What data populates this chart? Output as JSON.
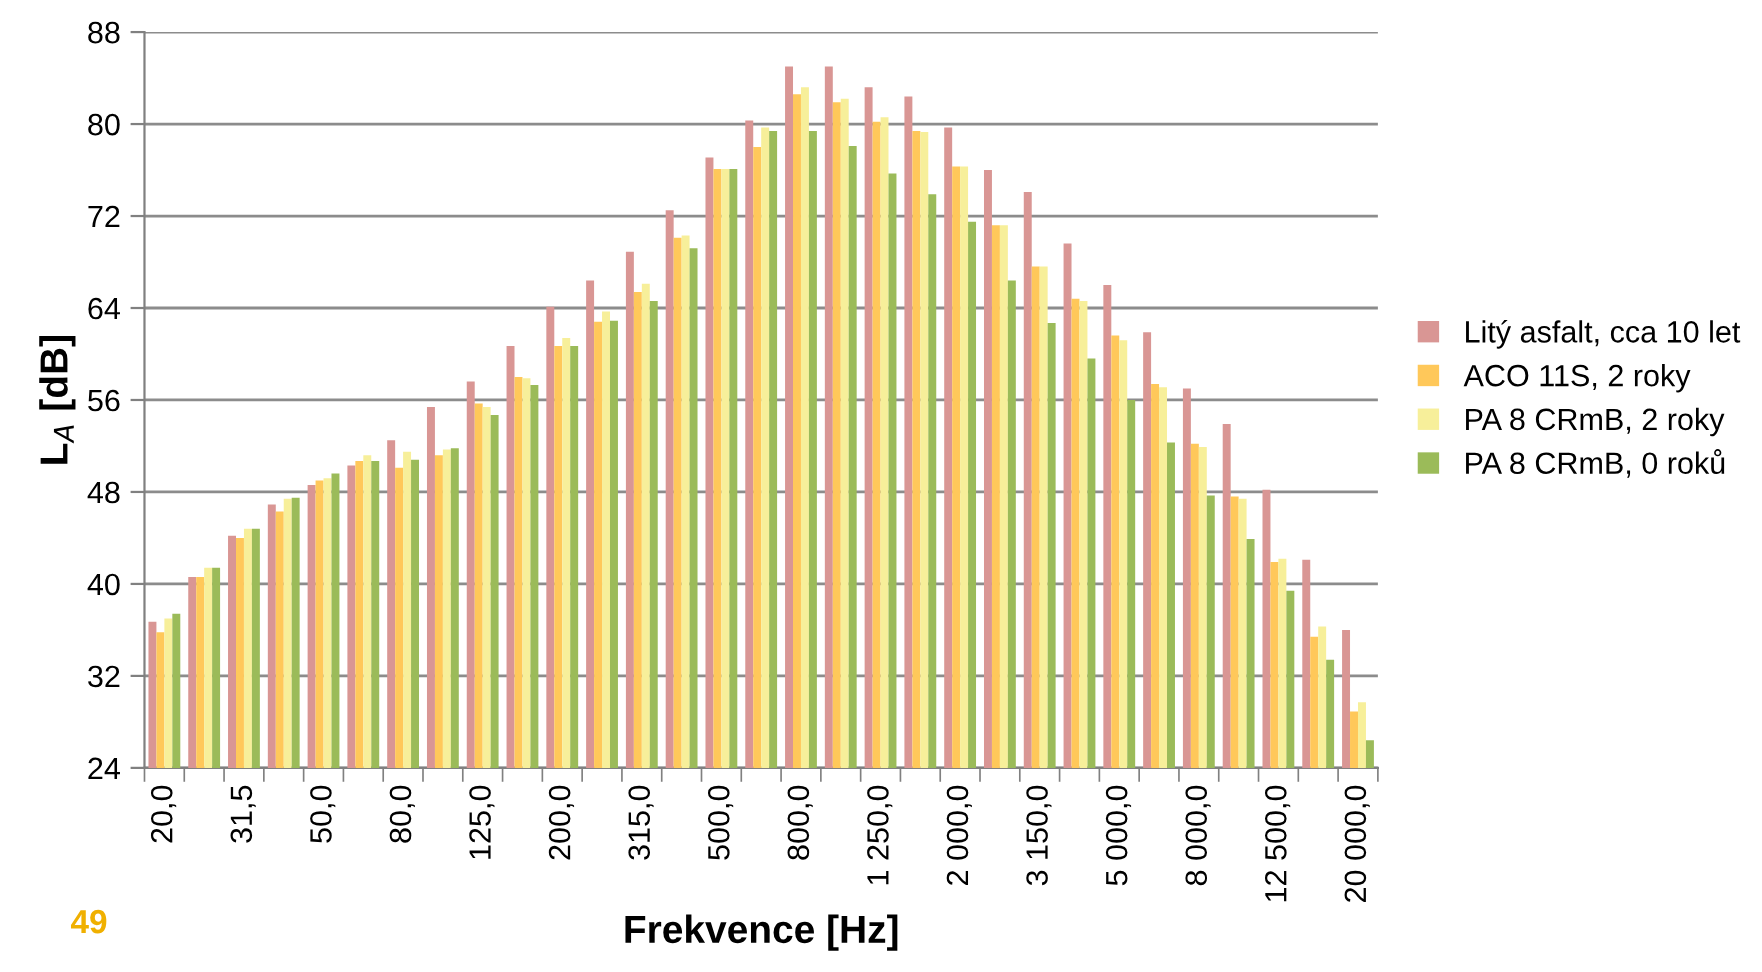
{
  "chart_data": {
    "type": "bar",
    "xlabel": "Frekvence [Hz]",
    "ylabel": "L$_{A}$ [dB]",
    "categories": [
      "20,0",
      null,
      "31,5",
      null,
      "50,0",
      null,
      "80,0",
      null,
      "125,0",
      null,
      "200,0",
      null,
      "315,0",
      null,
      "500,0",
      null,
      "800,0",
      null,
      "1 250,0",
      null,
      "2 000,0",
      null,
      "3 150,0",
      null,
      "5 000,0",
      null,
      "8 000,0",
      null,
      "12 500,0",
      null,
      "20 000,0"
    ],
    "series": [
      {
        "name": "Litý asfalt, cca 10 let",
        "color": "#d99694",
        "values": [
          36.7,
          40.6,
          44.2,
          46.9,
          48.6,
          50.3,
          52.5,
          55.4,
          57.6,
          60.7,
          64.1,
          66.4,
          68.9,
          72.5,
          77.1,
          80.3,
          85.0,
          85.0,
          83.2,
          82.4,
          79.7,
          76.0,
          74.1,
          69.6,
          66.0,
          61.9,
          57.0,
          53.9,
          48.2,
          42.1,
          36.0
        ]
      },
      {
        "name": "ACO 11S, 2 roky",
        "color": "#ffc85a",
        "values": [
          35.8,
          40.6,
          44.0,
          46.3,
          49.0,
          50.7,
          50.1,
          51.2,
          55.7,
          58.0,
          60.7,
          62.8,
          65.4,
          70.1,
          76.1,
          78.0,
          82.6,
          81.9,
          80.2,
          79.4,
          76.3,
          71.2,
          67.6,
          64.8,
          61.6,
          57.4,
          52.2,
          47.6,
          41.9,
          35.4,
          28.9
        ]
      },
      {
        "name": "PA 8 CRmB, 2 roky",
        "color": "#f7ef9a",
        "values": [
          37.0,
          41.4,
          44.8,
          47.4,
          49.2,
          51.2,
          51.5,
          51.7,
          55.4,
          57.9,
          61.4,
          63.7,
          66.1,
          70.3,
          76.1,
          79.7,
          83.2,
          82.2,
          80.6,
          79.3,
          76.3,
          71.2,
          67.6,
          64.6,
          61.2,
          57.1,
          51.9,
          47.4,
          42.2,
          36.3,
          29.7
        ]
      },
      {
        "name": "PA 8 CRmB, 0 roků",
        "color": "#9bbb59",
        "values": [
          37.4,
          41.4,
          44.8,
          47.5,
          49.6,
          50.7,
          50.8,
          51.8,
          54.7,
          57.3,
          60.7,
          62.9,
          64.6,
          69.2,
          76.1,
          79.4,
          79.4,
          78.1,
          75.7,
          73.9,
          71.5,
          66.4,
          62.7,
          59.6,
          56.0,
          52.3,
          47.7,
          43.9,
          39.4,
          33.4,
          26.4
        ]
      }
    ],
    "ylim": [
      24,
      88
    ],
    "yticks": [
      24,
      32,
      40,
      48,
      56,
      64,
      72,
      80,
      88
    ],
    "grid": "y",
    "legend": "right",
    "annotations": [
      "49"
    ]
  }
}
